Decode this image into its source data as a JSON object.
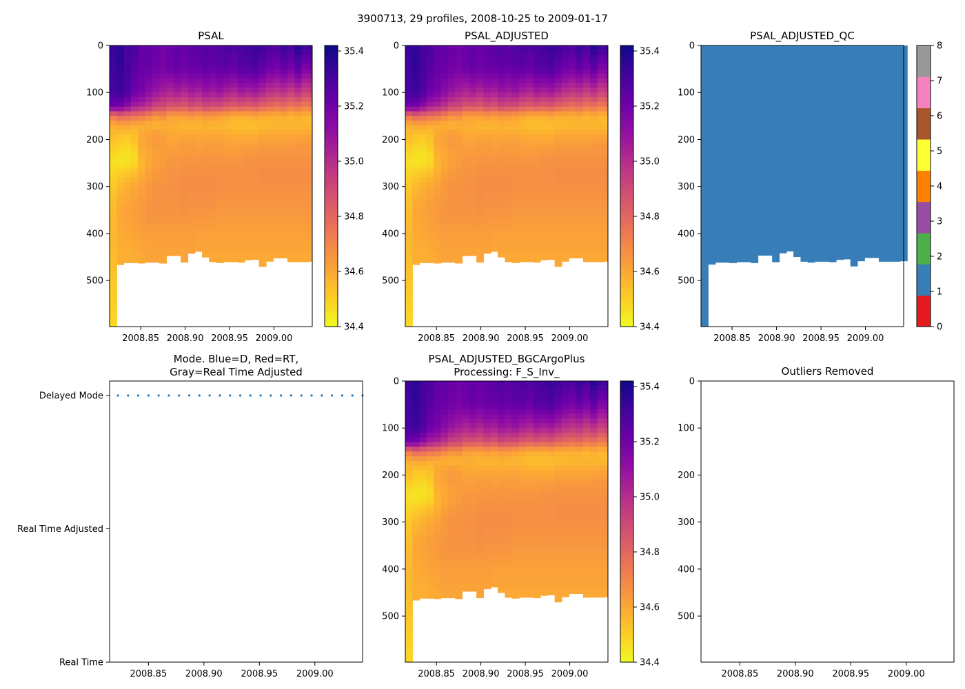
{
  "figure": {
    "title": "3900713, 29 profiles, 2008-10-25 to 2009-01-17"
  },
  "chart_data": [
    {
      "type": "heatmap",
      "title": "PSAL",
      "x_range": [
        2008.815,
        2009.043
      ],
      "y_range": [
        598,
        0
      ],
      "xticks": [
        {
          "value": 2008.85,
          "label": "2008.85"
        },
        {
          "value": 2008.9,
          "label": "2008.90"
        },
        {
          "value": 2008.95,
          "label": "2008.95"
        },
        {
          "value": 2009.0,
          "label": "2009.00"
        }
      ],
      "yticks": [
        {
          "value": 0,
          "label": "0"
        },
        {
          "value": 100,
          "label": "100"
        },
        {
          "value": 200,
          "label": "200"
        },
        {
          "value": 300,
          "label": "300"
        },
        {
          "value": 400,
          "label": "400"
        },
        {
          "value": 500,
          "label": "500"
        }
      ],
      "colorbar": {
        "colormap": "plasma_r",
        "range": [
          34.4,
          35.42
        ],
        "ticks": [
          "34.4",
          "34.6",
          "34.8",
          "35.0",
          "35.2",
          "35.4"
        ]
      }
    },
    {
      "type": "heatmap",
      "title": "PSAL_ADJUSTED",
      "x_range": [
        2008.815,
        2009.043
      ],
      "y_range": [
        598,
        0
      ],
      "xticks": [
        {
          "value": 2008.85,
          "label": "2008.85"
        },
        {
          "value": 2008.9,
          "label": "2008.90"
        },
        {
          "value": 2008.95,
          "label": "2008.95"
        },
        {
          "value": 2009.0,
          "label": "2009.00"
        }
      ],
      "yticks": [
        {
          "value": 0,
          "label": "0"
        },
        {
          "value": 100,
          "label": "100"
        },
        {
          "value": 200,
          "label": "200"
        },
        {
          "value": 300,
          "label": "300"
        },
        {
          "value": 400,
          "label": "400"
        },
        {
          "value": 500,
          "label": "500"
        }
      ],
      "colorbar": {
        "colormap": "plasma_r",
        "range": [
          34.4,
          35.42
        ],
        "ticks": [
          "34.4",
          "34.6",
          "34.8",
          "35.0",
          "35.2",
          "35.4"
        ]
      }
    },
    {
      "type": "heatmap",
      "title": "PSAL_ADJUSTED_QC",
      "x_range": [
        2008.815,
        2009.043
      ],
      "y_range": [
        598,
        0
      ],
      "xticks": [
        {
          "value": 2008.85,
          "label": "2008.85"
        },
        {
          "value": 2008.9,
          "label": "2008.90"
        },
        {
          "value": 2008.95,
          "label": "2008.95"
        },
        {
          "value": 2009.0,
          "label": "2009.00"
        }
      ],
      "yticks": [
        {
          "value": 0,
          "label": "0"
        },
        {
          "value": 100,
          "label": "100"
        },
        {
          "value": 200,
          "label": "200"
        },
        {
          "value": 300,
          "label": "300"
        },
        {
          "value": 400,
          "label": "400"
        },
        {
          "value": 500,
          "label": "500"
        }
      ],
      "qc_value": 1,
      "colorbar": {
        "range": [
          0,
          8
        ],
        "ticks": [
          "0",
          "1",
          "2",
          "3",
          "4",
          "5",
          "6",
          "7",
          "8"
        ],
        "colors": [
          "#e41a1c",
          "#377eb8",
          "#4daf4a",
          "#984ea3",
          "#ff7f00",
          "#ffff33",
          "#a65628",
          "#f781bf",
          "#999999"
        ]
      }
    },
    {
      "type": "scatter",
      "title": [
        "Mode. Blue=D, Red=RT,",
        "Gray=Real Time Adjusted"
      ],
      "x_range": [
        2008.815,
        2009.043
      ],
      "xticks": [
        {
          "value": 2008.85,
          "label": "2008.85"
        },
        {
          "value": 2008.9,
          "label": "2008.90"
        },
        {
          "value": 2008.95,
          "label": "2008.95"
        },
        {
          "value": 2009.0,
          "label": "2009.00"
        }
      ],
      "ycategories": [
        "Real Time",
        "Real Time Adjusted",
        "Delayed Mode"
      ],
      "series": [
        {
          "name": "Delayed Mode",
          "y": "Delayed Mode",
          "color": "#1f77b4",
          "x": "profile_dates"
        }
      ]
    },
    {
      "type": "heatmap",
      "title": [
        "PSAL_ADJUSTED_BGCArgoPlus",
        "Processing: F_S_Inv_"
      ],
      "x_range": [
        2008.815,
        2009.043
      ],
      "y_range": [
        598,
        0
      ],
      "xticks": [
        {
          "value": 2008.85,
          "label": "2008.85"
        },
        {
          "value": 2008.9,
          "label": "2008.90"
        },
        {
          "value": 2008.95,
          "label": "2008.95"
        },
        {
          "value": 2009.0,
          "label": "2009.00"
        }
      ],
      "yticks": [
        {
          "value": 0,
          "label": "0"
        },
        {
          "value": 100,
          "label": "100"
        },
        {
          "value": 200,
          "label": "200"
        },
        {
          "value": 300,
          "label": "300"
        },
        {
          "value": 400,
          "label": "400"
        },
        {
          "value": 500,
          "label": "500"
        }
      ],
      "colorbar": {
        "colormap": "plasma_r",
        "range": [
          34.4,
          35.42
        ],
        "ticks": [
          "34.4",
          "34.6",
          "34.8",
          "35.0",
          "35.2",
          "35.4"
        ]
      }
    },
    {
      "type": "scatter",
      "title": "Outliers Removed",
      "x_range": [
        2008.815,
        2009.043
      ],
      "y_range": [
        598,
        0
      ],
      "xticks": [
        {
          "value": 2008.85,
          "label": "2008.85"
        },
        {
          "value": 2008.9,
          "label": "2008.90"
        },
        {
          "value": 2008.95,
          "label": "2008.95"
        },
        {
          "value": 2009.0,
          "label": "2009.00"
        }
      ],
      "yticks": [
        {
          "value": 0,
          "label": "0"
        },
        {
          "value": 100,
          "label": "100"
        },
        {
          "value": 200,
          "label": "200"
        },
        {
          "value": 300,
          "label": "300"
        },
        {
          "value": 400,
          "label": "400"
        },
        {
          "value": 500,
          "label": "500"
        }
      ],
      "series": []
    }
  ],
  "profiles": {
    "dates": [
      2008.815,
      2008.823,
      2008.831,
      2008.839,
      2008.847,
      2008.855,
      2008.863,
      2008.871,
      2008.879,
      2008.887,
      2008.895,
      2008.903,
      2008.911,
      2008.919,
      2008.927,
      2008.935,
      2008.943,
      2008.951,
      2008.959,
      2008.967,
      2008.975,
      2008.983,
      2008.991,
      2008.999,
      2009.007,
      2009.015,
      2009.023,
      2009.031,
      2009.039
    ],
    "max_depth_dbar": [
      598,
      466,
      462,
      462,
      463,
      461,
      461,
      463,
      447,
      447,
      461,
      442,
      438,
      450,
      460,
      462,
      460,
      460,
      461,
      456,
      455,
      470,
      459,
      452,
      452,
      460,
      460,
      460,
      459
    ],
    "salinity_profile_depths_dbar": [
      0,
      50,
      100,
      130,
      150,
      170,
      190,
      210,
      230,
      250,
      270,
      300,
      350,
      400,
      450,
      500,
      598
    ],
    "salinity_profiles_psu": [
      [
        35.33,
        35.32,
        35.3,
        35.2,
        34.75,
        34.58,
        34.55,
        34.52,
        34.48,
        34.46,
        34.48,
        34.52,
        34.55,
        34.56,
        34.55,
        34.52,
        34.48
      ],
      [
        35.36,
        35.35,
        35.32,
        35.18,
        34.8,
        34.6,
        34.53,
        34.5,
        34.46,
        34.45,
        34.5,
        34.56,
        34.6,
        34.59,
        34.58
      ],
      [
        35.3,
        35.3,
        35.28,
        35.12,
        34.78,
        34.6,
        34.53,
        34.49,
        34.46,
        34.46,
        34.52,
        34.58,
        34.62,
        34.6,
        34.58
      ],
      [
        35.3,
        35.26,
        35.2,
        35.05,
        34.76,
        34.58,
        34.54,
        34.52,
        34.48,
        34.48,
        34.54,
        34.6,
        34.63,
        34.61,
        34.59
      ],
      [
        35.24,
        35.22,
        35.18,
        35.02,
        34.74,
        34.58,
        34.6,
        34.6,
        34.58,
        34.56,
        34.58,
        34.62,
        34.64,
        34.62,
        34.6
      ],
      [
        35.24,
        35.22,
        35.12,
        34.98,
        34.7,
        34.57,
        34.62,
        34.62,
        34.6,
        34.6,
        34.62,
        34.64,
        34.66,
        34.63,
        34.61
      ],
      [
        35.22,
        35.2,
        35.08,
        34.92,
        34.66,
        34.56,
        34.64,
        34.64,
        34.62,
        34.62,
        34.64,
        34.66,
        34.66,
        34.63,
        34.61
      ],
      [
        35.2,
        35.18,
        35.05,
        34.9,
        34.68,
        34.57,
        34.62,
        34.63,
        34.63,
        34.63,
        34.65,
        34.66,
        34.66,
        34.63,
        34.61
      ],
      [
        35.22,
        35.2,
        35.02,
        34.86,
        34.62,
        34.58,
        34.6,
        34.62,
        34.64,
        34.65,
        34.66,
        34.67,
        34.66,
        34.63,
        34.61
      ],
      [
        35.24,
        35.22,
        35.05,
        34.86,
        34.62,
        34.57,
        34.6,
        34.62,
        34.64,
        34.65,
        34.66,
        34.67,
        34.66,
        34.63,
        34.61
      ],
      [
        35.22,
        35.2,
        35.02,
        34.84,
        34.62,
        34.56,
        34.6,
        34.63,
        34.64,
        34.66,
        34.67,
        34.68,
        34.67,
        34.63,
        34.61
      ],
      [
        35.25,
        35.22,
        35.06,
        34.88,
        34.64,
        34.56,
        34.6,
        34.63,
        34.64,
        34.66,
        34.67,
        34.68,
        34.66,
        34.63,
        34.61
      ],
      [
        35.26,
        35.22,
        35.04,
        34.86,
        34.62,
        34.56,
        34.6,
        34.62,
        34.64,
        34.66,
        34.67,
        34.68,
        34.66,
        34.62,
        34.6
      ],
      [
        35.28,
        35.24,
        35.08,
        34.9,
        34.64,
        34.57,
        34.6,
        34.63,
        34.65,
        34.66,
        34.67,
        34.68,
        34.66,
        34.62,
        34.6
      ],
      [
        35.26,
        35.22,
        35.06,
        34.88,
        34.64,
        34.56,
        34.6,
        34.63,
        34.64,
        34.66,
        34.67,
        34.68,
        34.66,
        34.62,
        34.6
      ],
      [
        35.28,
        35.24,
        35.08,
        34.88,
        34.62,
        34.56,
        34.6,
        34.63,
        34.64,
        34.66,
        34.67,
        34.67,
        34.65,
        34.62,
        34.6
      ],
      [
        35.3,
        35.24,
        35.04,
        34.84,
        34.6,
        34.55,
        34.59,
        34.62,
        34.64,
        34.66,
        34.67,
        34.67,
        34.65,
        34.62,
        34.6
      ],
      [
        35.28,
        35.22,
        35.02,
        34.82,
        34.58,
        34.54,
        34.58,
        34.62,
        34.64,
        34.66,
        34.67,
        34.67,
        34.65,
        34.62,
        34.6
      ],
      [
        35.3,
        35.26,
        35.06,
        34.84,
        34.58,
        34.54,
        34.58,
        34.62,
        34.64,
        34.66,
        34.67,
        34.67,
        34.65,
        34.62,
        34.6
      ],
      [
        35.32,
        35.26,
        35.04,
        34.82,
        34.58,
        34.54,
        34.58,
        34.62,
        34.65,
        34.67,
        34.67,
        34.67,
        34.65,
        34.62,
        34.6
      ],
      [
        35.34,
        35.28,
        35.06,
        34.84,
        34.6,
        34.54,
        34.58,
        34.62,
        34.65,
        34.67,
        34.67,
        34.67,
        34.65,
        34.62,
        34.6
      ],
      [
        35.32,
        35.24,
        35.02,
        34.8,
        34.58,
        34.55,
        34.6,
        34.63,
        34.66,
        34.67,
        34.68,
        34.67,
        34.65,
        34.62,
        34.6
      ],
      [
        35.3,
        35.2,
        34.98,
        34.78,
        34.58,
        34.55,
        34.6,
        34.63,
        34.66,
        34.67,
        34.68,
        34.67,
        34.65,
        34.62,
        34.6
      ],
      [
        35.28,
        35.18,
        34.96,
        34.76,
        34.58,
        34.56,
        34.6,
        34.63,
        34.66,
        34.67,
        34.68,
        34.67,
        34.65,
        34.62,
        34.6
      ],
      [
        35.34,
        35.22,
        34.98,
        34.78,
        34.58,
        34.56,
        34.6,
        34.63,
        34.66,
        34.67,
        34.68,
        34.67,
        34.65,
        34.62,
        34.6
      ],
      [
        35.3,
        35.18,
        34.94,
        34.74,
        34.56,
        34.56,
        34.6,
        34.63,
        34.66,
        34.67,
        34.68,
        34.67,
        34.65,
        34.62,
        34.6
      ],
      [
        35.38,
        35.24,
        34.98,
        34.76,
        34.58,
        34.56,
        34.6,
        34.64,
        34.66,
        34.67,
        34.68,
        34.67,
        34.65,
        34.62,
        34.6
      ],
      [
        35.32,
        35.16,
        34.92,
        34.72,
        34.56,
        34.56,
        34.61,
        34.64,
        34.66,
        34.67,
        34.68,
        34.67,
        34.65,
        34.62,
        34.6
      ],
      [
        35.34,
        35.18,
        34.94,
        34.74,
        34.56,
        34.55,
        34.6,
        34.64,
        34.66,
        34.67,
        34.68,
        34.67,
        34.65,
        34.62,
        34.6
      ]
    ]
  }
}
